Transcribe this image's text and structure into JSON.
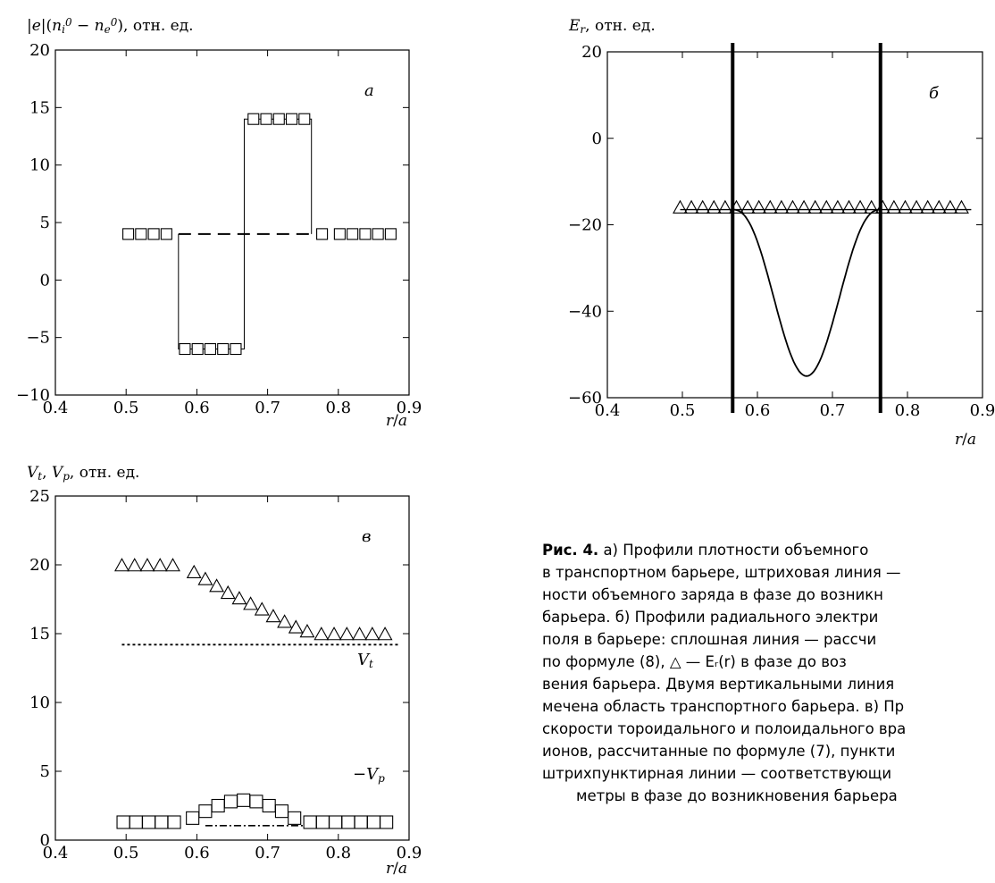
{
  "charts": [
    {
      "id": "a",
      "letter": "а",
      "ylabel": "|e|(n_i^0 − n_e^0), отн. ед.",
      "xlabel": "r/a",
      "xlim": [
        0.4,
        0.9
      ],
      "ylim": [
        -10,
        20
      ],
      "xticks": [
        "0.4",
        "0.5",
        "0.6",
        "0.7",
        "0.8",
        "0.9"
      ],
      "yticks": [
        "−10",
        "−5",
        "0",
        "5",
        "10",
        "15",
        "20"
      ],
      "yticks_vals": [
        -10,
        -5,
        0,
        5,
        10,
        15,
        20
      ],
      "xticks_vals": [
        0.4,
        0.5,
        0.6,
        0.7,
        0.8,
        0.9
      ],
      "squares": [
        {
          "x": 0.503,
          "y": 4
        },
        {
          "x": 0.521,
          "y": 4
        },
        {
          "x": 0.539,
          "y": 4
        },
        {
          "x": 0.557,
          "y": 4
        },
        {
          "x": 0.583,
          "y": -6
        },
        {
          "x": 0.601,
          "y": -6
        },
        {
          "x": 0.619,
          "y": -6
        },
        {
          "x": 0.637,
          "y": -6
        },
        {
          "x": 0.655,
          "y": -6
        },
        {
          "x": 0.68,
          "y": 14
        },
        {
          "x": 0.698,
          "y": 14
        },
        {
          "x": 0.716,
          "y": 14
        },
        {
          "x": 0.734,
          "y": 14
        },
        {
          "x": 0.752,
          "y": 14
        },
        {
          "x": 0.777,
          "y": 4
        },
        {
          "x": 0.802,
          "y": 4
        },
        {
          "x": 0.82,
          "y": 4
        },
        {
          "x": 0.838,
          "y": 4
        },
        {
          "x": 0.856,
          "y": 4
        },
        {
          "x": 0.874,
          "y": 4
        }
      ],
      "step_line": [
        [
          0.574,
          4
        ],
        [
          0.574,
          -6
        ],
        [
          0.667,
          -6
        ],
        [
          0.667,
          14
        ],
        [
          0.762,
          14
        ],
        [
          0.762,
          4
        ]
      ],
      "dashed_line": [
        [
          0.574,
          4
        ],
        [
          0.762,
          4
        ]
      ]
    },
    {
      "id": "b",
      "letter": "б",
      "ylabel": "E_r, отн. ед.",
      "xlabel": "r/a",
      "xlim": [
        0.4,
        0.9
      ],
      "ylim": [
        -60,
        20
      ],
      "xticks": [
        "0.4",
        "0.5",
        "0.6",
        "0.7",
        "0.8",
        "0.9"
      ],
      "yticks": [
        "−60",
        "−40",
        "−20",
        "0",
        "20"
      ],
      "yticks_vals": [
        -60,
        -40,
        -20,
        0,
        20
      ],
      "xticks_vals": [
        0.4,
        0.5,
        0.6,
        0.7,
        0.8,
        0.9
      ],
      "triangle_y": -16.5,
      "triangles_x": [
        0.497,
        0.512,
        0.527,
        0.542,
        0.557,
        0.572,
        0.587,
        0.602,
        0.617,
        0.632,
        0.647,
        0.662,
        0.677,
        0.692,
        0.707,
        0.722,
        0.737,
        0.752,
        0.767,
        0.782,
        0.797,
        0.812,
        0.827,
        0.842,
        0.857,
        0.872
      ],
      "flat_line": [
        0.497,
        0.885
      ],
      "well": {
        "x0": 0.567,
        "x1": 0.764,
        "baseline": -16.5,
        "min_x": 0.667,
        "min_y": -55
      },
      "vlines_x": [
        0.567,
        0.764
      ]
    },
    {
      "id": "v",
      "letter": "в",
      "ylabel": "V_t, V_p, отн. ед.",
      "xlabel": "r/a",
      "xlim": [
        0.4,
        0.9
      ],
      "ylim": [
        0,
        25
      ],
      "xticks": [
        "0.4",
        "0.5",
        "0.6",
        "0.7",
        "0.8",
        "0.9"
      ],
      "yticks": [
        "0",
        "5",
        "10",
        "15",
        "20",
        "25"
      ],
      "yticks_vals": [
        0,
        5,
        10,
        15,
        20,
        25
      ],
      "xticks_vals": [
        0.4,
        0.5,
        0.6,
        0.7,
        0.8,
        0.9
      ],
      "triangles": [
        {
          "x": 0.494,
          "y": 20
        },
        {
          "x": 0.512,
          "y": 20
        },
        {
          "x": 0.53,
          "y": 20
        },
        {
          "x": 0.548,
          "y": 20
        },
        {
          "x": 0.566,
          "y": 20
        },
        {
          "x": 0.596,
          "y": 19.5
        },
        {
          "x": 0.612,
          "y": 19
        },
        {
          "x": 0.628,
          "y": 18.5
        },
        {
          "x": 0.644,
          "y": 18
        },
        {
          "x": 0.66,
          "y": 17.6
        },
        {
          "x": 0.676,
          "y": 17.2
        },
        {
          "x": 0.692,
          "y": 16.8
        },
        {
          "x": 0.708,
          "y": 16.3
        },
        {
          "x": 0.724,
          "y": 15.9
        },
        {
          "x": 0.74,
          "y": 15.5
        },
        {
          "x": 0.756,
          "y": 15.2
        },
        {
          "x": 0.776,
          "y": 15
        },
        {
          "x": 0.794,
          "y": 15
        },
        {
          "x": 0.812,
          "y": 15
        },
        {
          "x": 0.83,
          "y": 15
        },
        {
          "x": 0.848,
          "y": 15
        },
        {
          "x": 0.866,
          "y": 15
        }
      ],
      "squares": [
        {
          "x": 0.496,
          "y": 1.3
        },
        {
          "x": 0.514,
          "y": 1.3
        },
        {
          "x": 0.532,
          "y": 1.3
        },
        {
          "x": 0.55,
          "y": 1.3
        },
        {
          "x": 0.568,
          "y": 1.3
        },
        {
          "x": 0.594,
          "y": 1.6
        },
        {
          "x": 0.612,
          "y": 2.1
        },
        {
          "x": 0.63,
          "y": 2.5
        },
        {
          "x": 0.648,
          "y": 2.8
        },
        {
          "x": 0.666,
          "y": 2.9
        },
        {
          "x": 0.684,
          "y": 2.8
        },
        {
          "x": 0.702,
          "y": 2.5
        },
        {
          "x": 0.72,
          "y": 2.1
        },
        {
          "x": 0.738,
          "y": 1.6
        },
        {
          "x": 0.76,
          "y": 1.3
        },
        {
          "x": 0.778,
          "y": 1.3
        },
        {
          "x": 0.796,
          "y": 1.3
        },
        {
          "x": 0.814,
          "y": 1.3
        },
        {
          "x": 0.832,
          "y": 1.3
        },
        {
          "x": 0.85,
          "y": 1.3
        },
        {
          "x": 0.868,
          "y": 1.3
        }
      ],
      "dotted_line": {
        "x0": 0.494,
        "x1": 0.885,
        "y": 14.2
      },
      "dashdot_line": {
        "x0": 0.612,
        "x1": 0.76,
        "y": 1.05
      },
      "label_vt": "V_t",
      "label_vp": "−V_p"
    }
  ],
  "caption_lines": [
    {
      "bold": "Рис. 4.",
      "text": "  а) Профили плотности объемного"
    },
    {
      "text": "в транспортном барьере, штриховая линия —"
    },
    {
      "text": "ности объемного заряда в фазе до возникн"
    },
    {
      "text": "барьера. б) Профили радиального электри"
    },
    {
      "text": "поля в барьере: сплошная линия — рассчи"
    },
    {
      "text": "по формуле (8), △ — Eᵣ(r) в фазе до воз"
    },
    {
      "text": "вения барьера. Двумя вертикальными линия"
    },
    {
      "text": "мечена область транспортного барьера. в) Пр"
    },
    {
      "text": "скорости тороидального и полоидального вра"
    },
    {
      "text": "ионов, рассчитанные по формуле (7), пункти"
    },
    {
      "text": "штрихпунктирная линии — соответствующи"
    },
    {
      "text": "метры в фазе до возникновения барьера",
      "indent": true
    }
  ]
}
